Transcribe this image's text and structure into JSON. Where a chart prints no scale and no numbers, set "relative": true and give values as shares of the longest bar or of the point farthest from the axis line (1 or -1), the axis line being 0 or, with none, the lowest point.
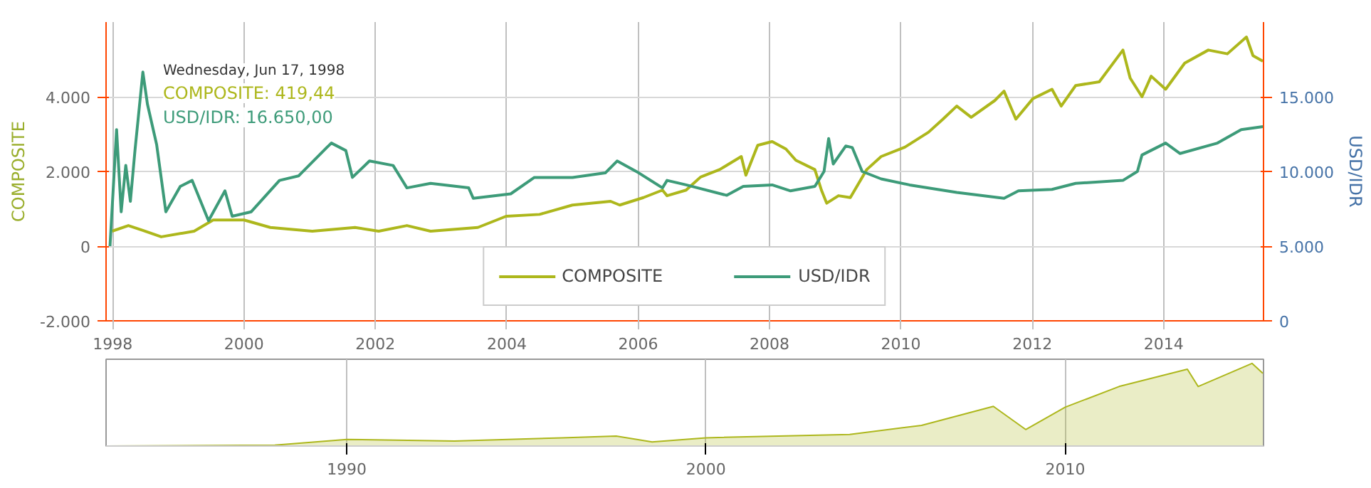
{
  "chart_data": [
    {
      "type": "line",
      "ylabel": "COMPOSITE",
      "y2label": "USD/IDR",
      "xlim": [
        1997.9,
        2015.52
      ],
      "xticks": [
        1998,
        2000,
        2002,
        2004,
        2006,
        2008,
        2010,
        2012,
        2014
      ],
      "ylim": [
        -2000,
        6000
      ],
      "yticks": [
        {
          "value": -2000,
          "label": "-2.000"
        },
        0,
        {
          "value": 2000,
          "label": "2.000"
        },
        {
          "value": 4000,
          "label": "4.000"
        }
      ],
      "y2lim": [
        0,
        20000
      ],
      "y2ticks": [
        0,
        {
          "value": 5000,
          "label": "5.000"
        },
        {
          "value": 10000,
          "label": "10.000"
        },
        {
          "value": 15000,
          "label": "15.000"
        }
      ],
      "grid": true,
      "legend": "bottom",
      "annotations": [
        "Wednesday, Jun 17, 1998",
        "COMPOSITE: 419,44",
        "USD/IDR: 16.650,00"
      ],
      "series": [
        {
          "name": "COMPOSITE",
          "color": "#adb71c",
          "x": [
            1997.99,
            1998.24,
            1998.46,
            1998.74,
            1999.24,
            1999.53,
            2000.0,
            2000.4,
            2001.04,
            2001.69,
            2002.05,
            2002.48,
            2002.84,
            2003.56,
            2003.99,
            2004.5,
            2005.0,
            2005.58,
            2005.72,
            2006.08,
            2006.37,
            2006.44,
            2006.73,
            2006.95,
            2007.24,
            2007.57,
            2007.64,
            2007.82,
            2008.04,
            2008.25,
            2008.4,
            2008.69,
            2008.79,
            2008.87,
            2009.05,
            2009.23,
            2009.48,
            2009.7,
            2010.06,
            2010.42,
            2010.64,
            2010.85,
            2011.07,
            2011.43,
            2011.57,
            2011.75,
            2012.01,
            2012.3,
            2012.44,
            2012.66,
            2013.02,
            2013.38,
            2013.49,
            2013.67,
            2013.81,
            2014.03,
            2014.32,
            2014.68,
            2014.97,
            2015.26,
            2015.36,
            2015.51
          ],
          "values": [
            400,
            550,
            419.44,
            250,
            400,
            700,
            700,
            500,
            400,
            500,
            400,
            550,
            400,
            500,
            800,
            850,
            1100,
            1200,
            1100,
            1300,
            1500,
            1350,
            1500,
            1850,
            2050,
            2400,
            1900,
            2700,
            2800,
            2600,
            2300,
            2050,
            1500,
            1150,
            1350,
            1300,
            2050,
            2400,
            2650,
            3050,
            3400,
            3750,
            3450,
            3900,
            4150,
            3400,
            3950,
            4200,
            3750,
            4300,
            4400,
            5250,
            4500,
            4000,
            4550,
            4200,
            4900,
            5250,
            5150,
            5600,
            5100,
            4950
          ]
        },
        {
          "name": "USD/IDR",
          "color": "#3d9b79",
          "axis": "y2",
          "x": [
            1997.96,
            1998.06,
            1998.13,
            1998.2,
            1998.27,
            1998.34,
            1998.46,
            1998.53,
            1998.67,
            1998.81,
            1999.03,
            1999.21,
            1999.46,
            1999.71,
            1999.82,
            2000.11,
            2000.54,
            2000.83,
            2001.26,
            2001.33,
            2001.55,
            2001.65,
            2001.91,
            2002.27,
            2002.48,
            2002.84,
            2003.42,
            2003.49,
            2004.06,
            2004.42,
            2005.0,
            2005.5,
            2005.68,
            2006.01,
            2006.37,
            2006.44,
            2006.73,
            2007.35,
            2007.6,
            2008.04,
            2008.32,
            2008.69,
            2008.83,
            2008.9,
            2008.97,
            2009.16,
            2009.26,
            2009.41,
            2009.7,
            2010.13,
            2010.85,
            2011.57,
            2011.79,
            2012.3,
            2012.66,
            2013.38,
            2013.6,
            2013.67,
            2014.03,
            2014.25,
            2014.82,
            2015.18,
            2015.51
          ],
          "values": [
            5000,
            12800,
            7300,
            10400,
            8000,
            11400,
            16650,
            14500,
            11800,
            7300,
            9000,
            9400,
            6700,
            8700,
            7000,
            7300,
            9400,
            9700,
            11600,
            11900,
            11400,
            9600,
            10700,
            10400,
            8900,
            9200,
            8900,
            8200,
            8500,
            9600,
            9600,
            9900,
            10700,
            9900,
            8900,
            9400,
            9100,
            8400,
            9000,
            9100,
            8700,
            9000,
            10000,
            12200,
            10500,
            11700,
            11600,
            10000,
            9500,
            9100,
            8600,
            8200,
            8700,
            8800,
            9200,
            9400,
            10000,
            11100,
            11900,
            11200,
            11900,
            12800,
            13000
          ]
        }
      ]
    },
    {
      "type": "area",
      "relative": true,
      "xlim": [
        1983.3,
        2015.52
      ],
      "xticks": [
        1990,
        2000,
        2010
      ],
      "grid": "x",
      "series": [
        {
          "color": "#adb71c",
          "x": [
            1983.3,
            1988.0,
            1990.0,
            1993.0,
            1996.0,
            1997.5,
            1998.5,
            2000.0,
            2004.0,
            2006.0,
            2008.0,
            2008.9,
            2010.0,
            2011.5,
            2013.4,
            2013.7,
            2015.2,
            2015.5
          ],
          "values": [
            0.0,
            0.01,
            0.08,
            0.06,
            0.1,
            0.12,
            0.05,
            0.1,
            0.14,
            0.25,
            0.48,
            0.2,
            0.47,
            0.72,
            0.93,
            0.72,
            1.0,
            0.88
          ]
        }
      ]
    }
  ]
}
